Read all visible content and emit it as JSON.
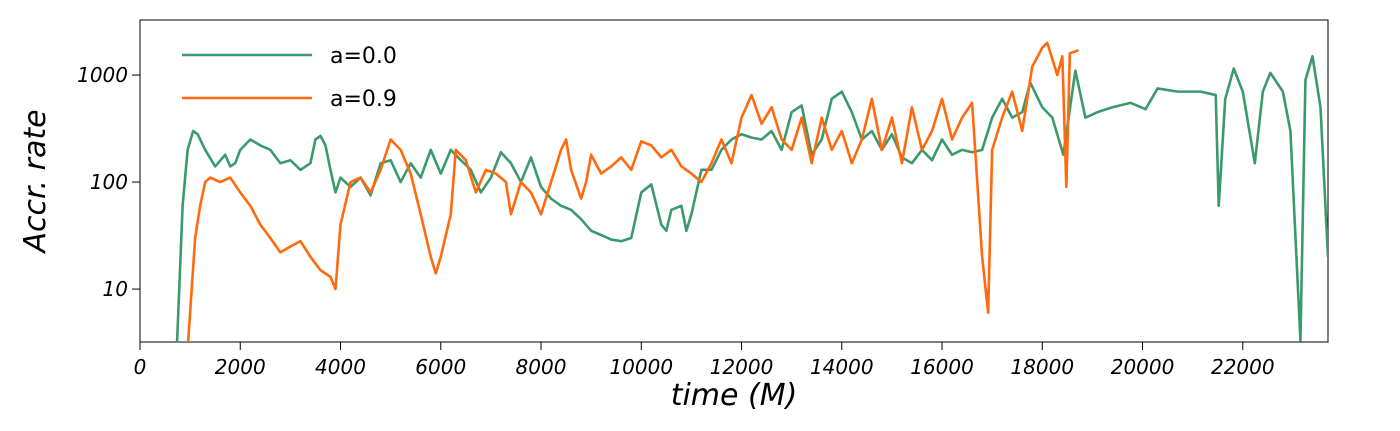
{
  "chart_data": {
    "type": "line",
    "xlabel": "time (M)",
    "ylabel": "Accr. rate",
    "xlim": [
      0,
      23700
    ],
    "ylim": [
      3.2,
      3270
    ],
    "log_y": true,
    "grid": false,
    "legend": "upper left",
    "xticks": [
      0,
      2000,
      4000,
      6000,
      8000,
      10000,
      12000,
      14000,
      16000,
      18000,
      20000,
      22000
    ],
    "yticks": [
      10,
      100,
      1000
    ],
    "series": [
      {
        "name": "a=0.0",
        "color": "#3b9a6c",
        "x": [
          740,
          850,
          950,
          1060,
          1150,
          1300,
          1500,
          1700,
          1800,
          1900,
          2000,
          2200,
          2400,
          2600,
          2800,
          3000,
          3200,
          3400,
          3500,
          3600,
          3700,
          3800,
          3900,
          4000,
          4200,
          4400,
          4600,
          4800,
          5000,
          5200,
          5400,
          5600,
          5800,
          6000,
          6200,
          6400,
          6600,
          6800,
          7000,
          7200,
          7400,
          7600,
          7800,
          8000,
          8200,
          8400,
          8600,
          8800,
          9000,
          9200,
          9400,
          9600,
          9800,
          10000,
          10200,
          10400,
          10500,
          10600,
          10800,
          10900,
          11000,
          11200,
          11400,
          11600,
          11800,
          12000,
          12200,
          12400,
          12600,
          12800,
          13000,
          13200,
          13400,
          13600,
          13800,
          14000,
          14200,
          14400,
          14600,
          14800,
          15000,
          15200,
          15400,
          15600,
          15800,
          16000,
          16200,
          16400,
          16600,
          16800,
          17000,
          17200,
          17400,
          17600,
          17760,
          18000,
          18200,
          18420,
          18660,
          18860,
          19100,
          19400,
          19760,
          20060,
          20300,
          20700,
          21160,
          21460,
          21520,
          21650,
          21820,
          22000,
          22240,
          22400,
          22550,
          22800,
          22950,
          23150,
          23250,
          23390,
          23550,
          23700
        ],
        "values": [
          3.2,
          60,
          200,
          300,
          280,
          200,
          140,
          180,
          140,
          150,
          200,
          250,
          220,
          200,
          150,
          160,
          130,
          150,
          250,
          270,
          220,
          130,
          80,
          110,
          90,
          110,
          75,
          150,
          160,
          100,
          150,
          110,
          200,
          120,
          200,
          160,
          130,
          80,
          110,
          190,
          150,
          100,
          170,
          90,
          70,
          60,
          55,
          45,
          35,
          32,
          29,
          28,
          30,
          80,
          95,
          40,
          35,
          55,
          60,
          35,
          50,
          130,
          130,
          200,
          250,
          280,
          260,
          250,
          300,
          200,
          450,
          520,
          180,
          250,
          600,
          700,
          450,
          250,
          300,
          200,
          280,
          170,
          150,
          200,
          160,
          250,
          180,
          200,
          190,
          200,
          400,
          600,
          400,
          450,
          850,
          500,
          400,
          180,
          1100,
          400,
          450,
          500,
          550,
          480,
          750,
          700,
          700,
          650,
          60,
          600,
          1150,
          700,
          150,
          700,
          1050,
          700,
          300,
          3.3,
          900,
          1500,
          500,
          20
        ]
      },
      {
        "name": "a=0.9",
        "color": "#ff6a0e",
        "x": [
          960,
          1100,
          1200,
          1300,
          1400,
          1600,
          1800,
          2000,
          2200,
          2400,
          2600,
          2800,
          3000,
          3200,
          3400,
          3600,
          3800,
          3900,
          4000,
          4200,
          4400,
          4600,
          4800,
          5000,
          5200,
          5400,
          5600,
          5800,
          5900,
          6000,
          6200,
          6300,
          6500,
          6700,
          6900,
          7100,
          7300,
          7400,
          7600,
          7800,
          8000,
          8200,
          8400,
          8500,
          8600,
          8800,
          8900,
          9000,
          9200,
          9400,
          9600,
          9800,
          10000,
          10200,
          10400,
          10600,
          10800,
          11000,
          11200,
          11400,
          11600,
          11800,
          12000,
          12200,
          12400,
          12600,
          12800,
          13000,
          13200,
          13400,
          13600,
          13800,
          14000,
          14200,
          14400,
          14600,
          14800,
          15000,
          15200,
          15400,
          15600,
          15800,
          16000,
          16200,
          16400,
          16600,
          16800,
          16920,
          17000,
          17200,
          17400,
          17600,
          17800,
          18000,
          18100,
          18300,
          18400,
          18480,
          18550,
          18720
        ],
        "values": [
          3.2,
          30,
          60,
          100,
          110,
          100,
          110,
          80,
          60,
          40,
          30,
          22,
          25,
          28,
          20,
          15,
          13,
          10,
          40,
          100,
          110,
          80,
          130,
          250,
          200,
          120,
          50,
          20,
          14,
          20,
          50,
          200,
          160,
          80,
          130,
          120,
          100,
          50,
          100,
          80,
          50,
          100,
          200,
          250,
          130,
          70,
          100,
          180,
          120,
          140,
          170,
          130,
          240,
          220,
          170,
          200,
          140,
          120,
          100,
          150,
          250,
          150,
          400,
          650,
          350,
          500,
          250,
          200,
          400,
          150,
          400,
          200,
          300,
          150,
          250,
          600,
          200,
          400,
          150,
          500,
          200,
          300,
          600,
          250,
          400,
          550,
          20,
          6,
          200,
          400,
          700,
          300,
          1200,
          1800,
          2000,
          1000,
          1500,
          90,
          1600,
          1700
        ]
      }
    ]
  }
}
